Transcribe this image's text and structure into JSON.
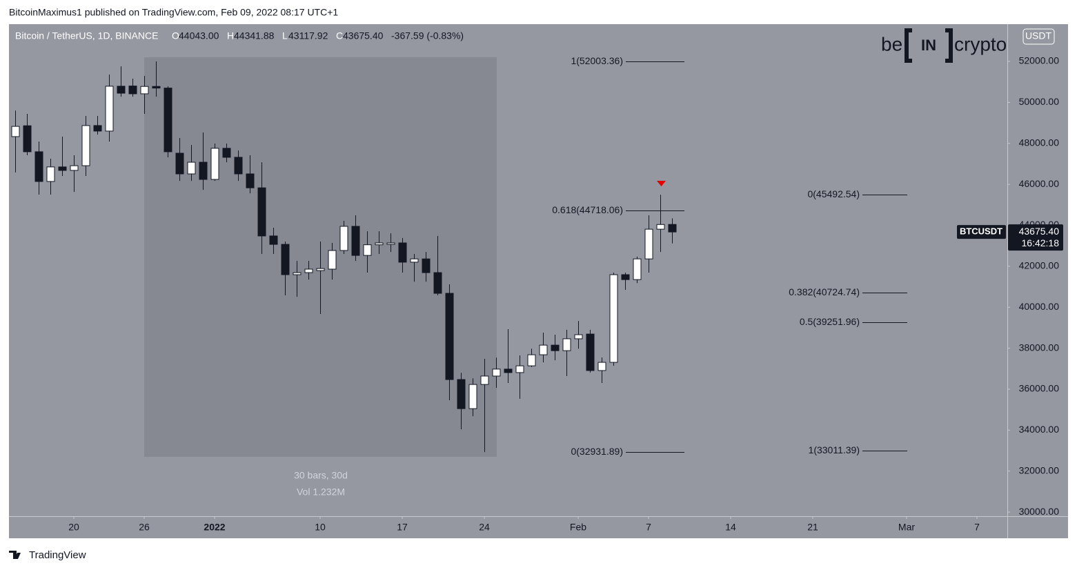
{
  "header": "BitcoinMaximus1 published on TradingView.com, Feb 09, 2022 08:17 UTC+1",
  "footer": "TradingView",
  "chart_data": {
    "type": "candlestick",
    "title": "Bitcoin / TetherUS, 1D, BINANCE",
    "ohlc_legend": [
      "O",
      "44043.00",
      "H",
      "44341.88",
      "L",
      "43117.92",
      "C",
      "43675.40",
      "-367.59 (-0.83%)"
    ],
    "currency": "USDT",
    "watermark": [
      "be",
      "IN",
      "crypto"
    ],
    "categories": [
      null,
      null,
      null,
      null,
      null,
      null,
      null,
      null,
      null,
      null,
      null,
      null,
      null,
      null,
      null,
      null,
      null,
      null,
      null,
      null,
      null,
      null,
      null,
      null,
      null,
      null,
      null,
      null,
      null,
      null,
      null,
      null,
      null,
      null,
      null,
      null,
      null,
      null,
      null,
      null,
      null,
      null,
      null,
      null,
      null,
      null,
      null,
      null,
      null,
      null,
      null,
      null,
      null,
      null,
      null,
      null,
      null
    ],
    "open": [
      48330,
      48860,
      47590,
      46140,
      46850,
      46680,
      46910,
      48870,
      48600,
      50790,
      50800,
      50420,
      50780,
      50700,
      47520,
      46510,
      47080,
      46240,
      47760,
      47320,
      46510,
      45830,
      43480,
      43070,
      41590,
      41690,
      41790,
      41860,
      42770,
      43950,
      42530,
      43050,
      43070,
      43140,
      42200,
      42360,
      41690,
      40680,
      36470,
      35050,
      36230,
      36640,
      36980,
      36810,
      37140,
      37680,
      38150,
      37880,
      38460,
      38690,
      36910,
      37310,
      41590,
      41350,
      42360,
      43810,
      44043
    ],
    "high": [
      49600,
      49440,
      48090,
      47250,
      48330,
      47420,
      49340,
      49340,
      51360,
      51760,
      51160,
      51290,
      52000,
      50790,
      48260,
      47920,
      48530,
      47990,
      47990,
      47650,
      47420,
      47080,
      43880,
      43210,
      42260,
      42260,
      43210,
      43140,
      44220,
      44490,
      43710,
      43710,
      43610,
      43380,
      42600,
      42700,
      43480,
      41120,
      36800,
      36530,
      37480,
      37540,
      38930,
      37650,
      37980,
      38760,
      38660,
      38900,
      39330,
      38900,
      37550,
      41690,
      41690,
      42470,
      44490,
      45490,
      44341.88
    ],
    "low": [
      46580,
      47420,
      45500,
      45500,
      46410,
      45630,
      46410,
      48430,
      48090,
      50280,
      50280,
      49440,
      50280,
      47320,
      46170,
      46170,
      45730,
      46170,
      47080,
      46170,
      45560,
      42600,
      42600,
      40580,
      40510,
      41350,
      39670,
      41350,
      42600,
      42260,
      41690,
      42600,
      42700,
      41690,
      41250,
      41250,
      40580,
      35460,
      34040,
      34680,
      32930,
      36060,
      36300,
      35530,
      37080,
      37310,
      37410,
      36640,
      37980,
      36810,
      36300,
      37140,
      40850,
      41180,
      41690,
      42700,
      43117.92
    ],
    "close": [
      48830,
      47590,
      46140,
      46850,
      46680,
      46910,
      48870,
      48600,
      50790,
      50450,
      50420,
      50780,
      50700,
      47590,
      46510,
      47080,
      46240,
      47760,
      47320,
      46510,
      45830,
      43480,
      43070,
      41590,
      41690,
      41860,
      41890,
      42770,
      43950,
      42530,
      43050,
      43140,
      43140,
      42200,
      42360,
      41690,
      40680,
      36470,
      35050,
      36230,
      36640,
      36980,
      36810,
      37140,
      37680,
      38150,
      37880,
      38460,
      38660,
      36910,
      37310,
      41590,
      41350,
      42360,
      43810,
      44040,
      43675.4
    ],
    "up_color": "#ffffff",
    "down_color": "#131722",
    "wick_color": "#131722",
    "xlim": [
      -0.53,
      84.59
    ],
    "xticks": [
      {
        "value": 5,
        "label": "20"
      },
      {
        "value": 11,
        "label": "26"
      },
      {
        "value": 17,
        "label": "2022"
      },
      {
        "value": 26,
        "label": "10"
      },
      {
        "value": 33,
        "label": "17"
      },
      {
        "value": 40,
        "label": "24"
      },
      {
        "value": 48,
        "label": "Feb"
      },
      {
        "value": 54,
        "label": "7"
      },
      {
        "value": 61,
        "label": "14"
      },
      {
        "value": 68,
        "label": "21"
      },
      {
        "value": 76,
        "label": "Mar"
      },
      {
        "value": 82,
        "label": "7"
      }
    ],
    "ylim": [
      29800,
      53820
    ],
    "yticks": [
      {
        "value": 52000,
        "label": "52000.00"
      },
      {
        "value": 50000,
        "label": "50000.00"
      },
      {
        "value": 48000,
        "label": "48000.00"
      },
      {
        "value": 46000,
        "label": "46000.00"
      },
      {
        "value": 44000,
        "label": "44000.00"
      },
      {
        "value": 42000,
        "label": "42000.00"
      },
      {
        "value": 40000,
        "label": "40000.00"
      },
      {
        "value": 38000,
        "label": "38000.00"
      },
      {
        "value": 36000,
        "label": "36000.00"
      },
      {
        "value": 34000,
        "label": "34000.00"
      },
      {
        "value": 32000,
        "label": "32000.00"
      },
      {
        "value": 30000,
        "label": "30000.00"
      }
    ],
    "fib_left": [
      {
        "value": 52003.36,
        "label": "1(52003.36)"
      },
      {
        "value": 44718.06,
        "label": "0.618(44718.06)"
      },
      {
        "value": 32931.89,
        "label": "0(32931.89)"
      }
    ],
    "fib_right": [
      {
        "value": 45492.54,
        "label": "0(45492.54)"
      },
      {
        "value": 40724.74,
        "label": "0.382(40724.74)"
      },
      {
        "value": 39251.96,
        "label": "0.5(39251.96)"
      },
      {
        "value": 33011.39,
        "label": "1(33011.39)"
      }
    ],
    "measure": [
      "30 bars, 30d",
      "Vol 1.232M"
    ],
    "symbol_label": "BTCUSDT",
    "last_price": {
      "value": 43675.4,
      "label": "43675.40"
    },
    "countdown": "16:42:18"
  }
}
